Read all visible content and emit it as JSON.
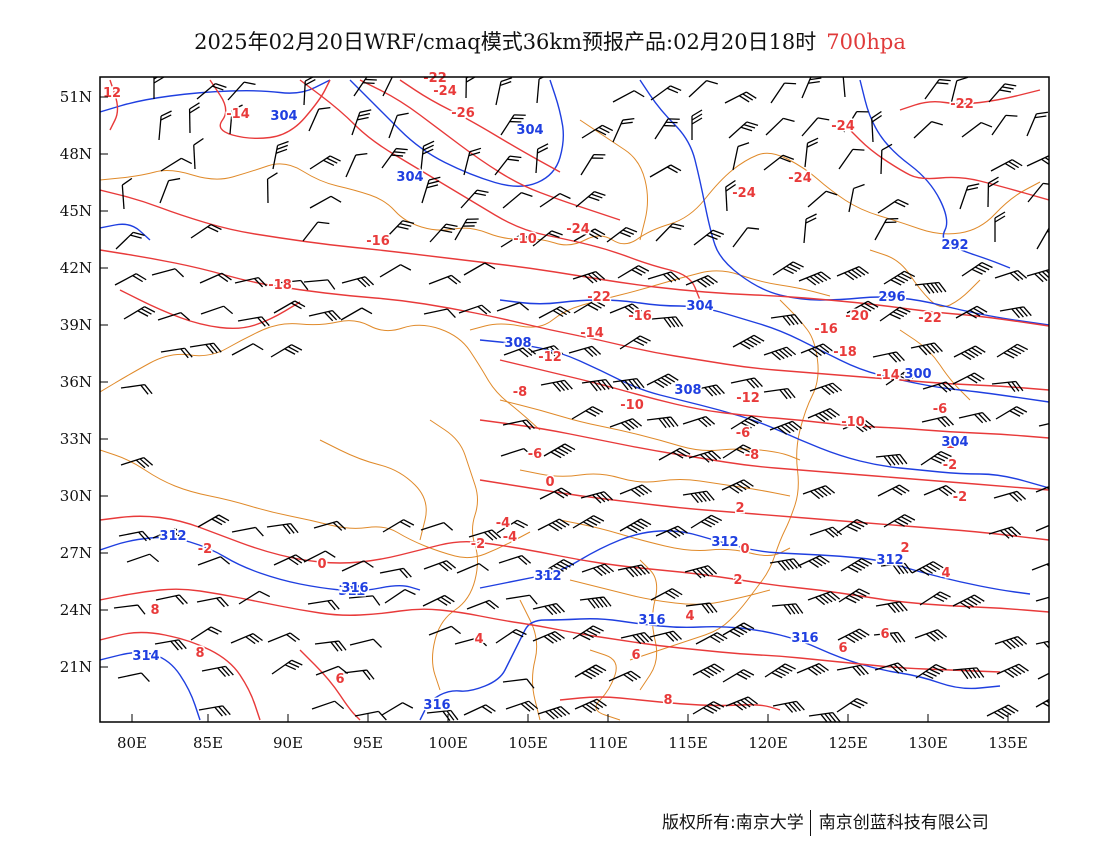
{
  "title": {
    "main": "2025年02月20日WRF/cmaq模式36km预报产品:02月20日18时",
    "level": "700hpa"
  },
  "colors": {
    "temperature_contour": "#e83a3a",
    "height_contour": "#1f3fe0",
    "wind_barb": "#000000",
    "boundary": "#e08a2a",
    "level_text": "#e03a3a"
  },
  "axes": {
    "lon_labels": [
      "80E",
      "85E",
      "90E",
      "95E",
      "100E",
      "105E",
      "110E",
      "115E",
      "120E",
      "125E",
      "130E",
      "135E"
    ],
    "lat_labels": [
      "51N",
      "48N",
      "45N",
      "42N",
      "39N",
      "36N",
      "33N",
      "30N",
      "27N",
      "24N",
      "21N"
    ]
  },
  "temperature_labels": [
    "12",
    "-14",
    "-22",
    "-24",
    "-26",
    "-24",
    "-24",
    "-24",
    "-24",
    "-22",
    "-16",
    "-10",
    "-18",
    "-22",
    "-16",
    "-14",
    "-12",
    "-16",
    "-20",
    "-18",
    "-22",
    "-14",
    "-8",
    "-10",
    "-12",
    "-10",
    "-6",
    "-6",
    "-8",
    "-6",
    "-2",
    "-2",
    "0",
    "2",
    "-2",
    "-4",
    "-4",
    "-2",
    "0",
    "-2",
    "0",
    "2",
    "2",
    "4",
    "4",
    "6",
    "8",
    "8",
    "4",
    "6",
    "6",
    "6",
    "8"
  ],
  "height_labels": [
    "304",
    "304",
    "304",
    "292",
    "296",
    "304",
    "308",
    "308",
    "300",
    "304",
    "312",
    "312",
    "312",
    "312",
    "312",
    "314",
    "316",
    "316",
    "316",
    "316"
  ],
  "footer": {
    "left": "版权所有:南京大学",
    "right": "南京创蓝科技有限公司"
  }
}
